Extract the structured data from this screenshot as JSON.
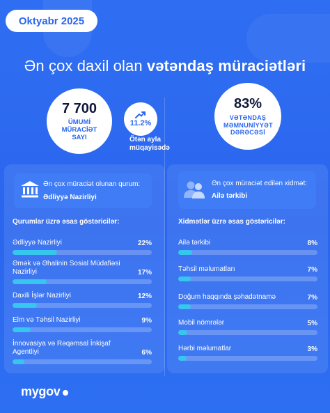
{
  "date_badge": "Oktyabr 2025",
  "headline": {
    "regular": "Ən çox daxil olan ",
    "bold": "vətəndaş müraciətləri"
  },
  "total": {
    "value": "7 700",
    "label": "ÜMUMİ MÜRACİƏT SAYI"
  },
  "change": {
    "value": "11.2%",
    "label": "Ötən ayla müqayisədə"
  },
  "satisfaction": {
    "value": "83%",
    "label": "VƏTƏNDAŞ MƏMNUNİYYƏT DƏRƏCƏSİ"
  },
  "institution": {
    "label": "Ən çox müraciət olunan qurum:",
    "value": "Ədliyyə Nazirliyi"
  },
  "service": {
    "label": "Ən çox müraciət edilən xidmət:",
    "value": "Ailə tərkibi"
  },
  "institutions_heading": "Qurumlar üzrə əsas göstəricilər:",
  "services_heading": "Xidmətlər üzrə əsas göstəricilər:",
  "institutions": [
    {
      "name": "Ədliyyə Nazirliyi",
      "percent": "22%",
      "value": 22
    },
    {
      "name": "Əmək və Əhalinin Sosial Müdafiəsi Nazirliyi",
      "percent": "17%",
      "value": 17
    },
    {
      "name": "Daxili İşlər Nazirliyi",
      "percent": "12%",
      "value": 12
    },
    {
      "name": "Elm və Təhsil Nazirliyi",
      "percent": "9%",
      "value": 9
    },
    {
      "name": "İnnovasiya və Rəqəmsal İnkişaf Agentliyi",
      "percent": "6%",
      "value": 6
    }
  ],
  "services": [
    {
      "name": "Ailə tərkibi",
      "percent": "8%",
      "value": 8
    },
    {
      "name": "Təhsil məlumatları",
      "percent": "7%",
      "value": 7
    },
    {
      "name": "Doğum haqqında şəhadətnamə",
      "percent": "7%",
      "value": 7
    },
    {
      "name": "Mobil nömrələr",
      "percent": "5%",
      "value": 5
    },
    {
      "name": "Hərbi məlumatlar",
      "percent": "3%",
      "value": 3
    }
  ],
  "logo": "mygov",
  "colors": {
    "background": "#2a66ee",
    "bar_fill": "#36c6ee",
    "accent": "#2a66ee"
  },
  "icons": {
    "institution": "building-columns-icon",
    "service": "family-users-icon",
    "trend": "trend-up-icon"
  }
}
